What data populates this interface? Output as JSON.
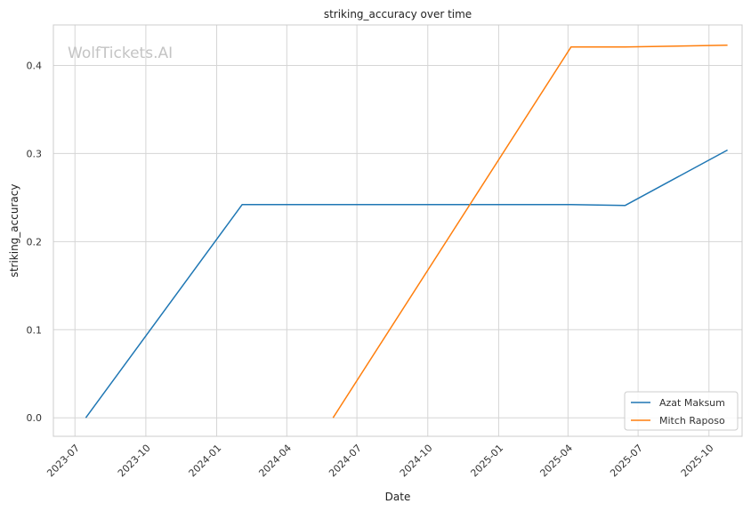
{
  "chart_data": {
    "type": "line",
    "title": "striking_accuracy over time",
    "xlabel": "Date",
    "ylabel": "striking_accuracy",
    "watermark": "WolfTickets.AI",
    "x_ticks": [
      "2023-07",
      "2023-10",
      "2024-01",
      "2024-04",
      "2024-07",
      "2024-10",
      "2025-01",
      "2025-04",
      "2025-07",
      "2025-10"
    ],
    "y_ticks": [
      "0.0",
      "0.1",
      "0.2",
      "0.3",
      "0.4"
    ],
    "xlim": [
      "2023-06-03",
      "2025-11-13"
    ],
    "ylim": [
      -0.021,
      0.446
    ],
    "grid": true,
    "legend_position": "lower-right",
    "series": [
      {
        "name": "Azat Maksum",
        "color": "#1f77b4",
        "points": [
          {
            "x": "2023-07-15",
            "y": 0.0
          },
          {
            "x": "2024-02-03",
            "y": 0.242
          },
          {
            "x": "2025-04-05",
            "y": 0.242
          },
          {
            "x": "2025-06-14",
            "y": 0.241
          },
          {
            "x": "2025-10-25",
            "y": 0.304
          }
        ]
      },
      {
        "name": "Mitch Raposo",
        "color": "#ff7f0e",
        "points": [
          {
            "x": "2024-05-31",
            "y": 0.0
          },
          {
            "x": "2025-04-05",
            "y": 0.421
          },
          {
            "x": "2025-06-14",
            "y": 0.421
          },
          {
            "x": "2025-10-25",
            "y": 0.423
          }
        ]
      }
    ]
  }
}
